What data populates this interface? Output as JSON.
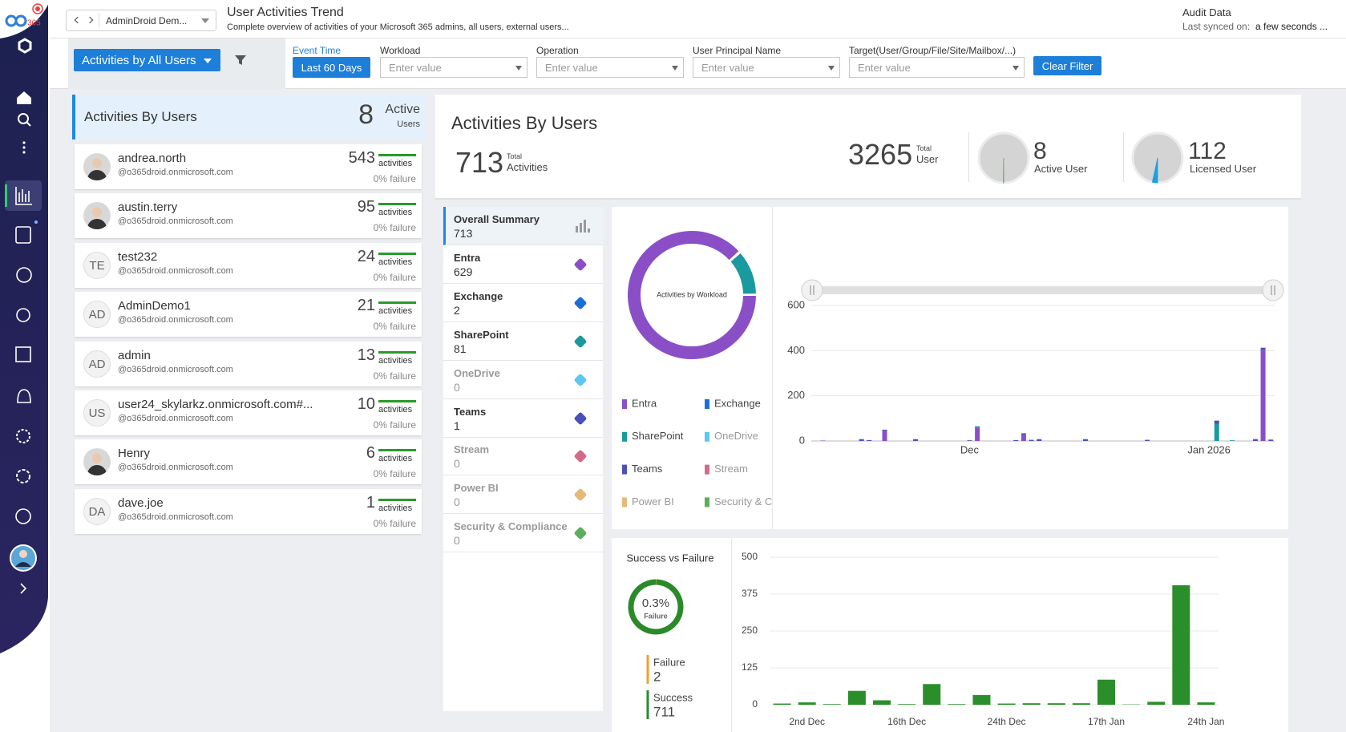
{
  "logo": {
    "text": "365"
  },
  "header": {
    "tenant": "AdminDroid Dem...",
    "title": "User Activities Trend",
    "subtitle": "Complete overview of activities of your Microsoft 365 admins, all users, external users...",
    "audit_title": "Audit Data",
    "synced_label": "Last synced on:",
    "synced_value": "a few seconds ..."
  },
  "filters": {
    "view": "Activities by All Users",
    "event_time_label": "Event Time",
    "event_time_value": "Last 60 Days",
    "fields": [
      {
        "label": "Workload",
        "placeholder": "Enter value"
      },
      {
        "label": "Operation",
        "placeholder": "Enter value"
      },
      {
        "label": "User Principal Name",
        "placeholder": "Enter value"
      },
      {
        "label": "Target(User/Group/File/Site/Mailbox/...)",
        "placeholder": "Enter value"
      }
    ],
    "clear": "Clear Filter"
  },
  "users_panel": {
    "title": "Activities By Users",
    "active_count": 8,
    "active_label": "Active",
    "active_sub": "Users",
    "users": [
      {
        "name": "andrea.north",
        "domain": "@o365droid.onmicrosoft.com",
        "count": 543,
        "count_label": "activities",
        "failure": "0% failure"
      },
      {
        "name": "austin.terry",
        "domain": "@o365droid.onmicrosoft.com",
        "count": 95,
        "count_label": "activities",
        "failure": "0% failure"
      },
      {
        "initials": "TE",
        "name": "test232",
        "domain": "@o365droid.onmicrosoft.com",
        "count": 24,
        "count_label": "activities",
        "failure": "0% failure"
      },
      {
        "initials": "AD",
        "name": "AdminDemo1",
        "domain": "@o365droid.onmicrosoft.com",
        "count": 21,
        "count_label": "activities",
        "failure": "0% failure"
      },
      {
        "initials": "AD",
        "name": "admin",
        "domain": "@o365droid.onmicrosoft.com",
        "count": 13,
        "count_label": "activities",
        "failure": "0% failure"
      },
      {
        "initials": "US",
        "name": "user24_skylarkz.onmicrosoft.com#...",
        "domain": "@o365droid.onmicrosoft.com",
        "count": 10,
        "count_label": "activities",
        "failure": "0% failure"
      },
      {
        "name": "Henry",
        "domain": "@o365droid.onmicrosoft.com",
        "count": 6,
        "count_label": "activities",
        "failure": "0% failure"
      },
      {
        "initials": "DA",
        "name": "dave.joe",
        "domain": "@o365droid.onmicrosoft.com",
        "count": 1,
        "count_label": "activities",
        "failure": "0% failure"
      }
    ]
  },
  "summary": {
    "title": "Activities By Users",
    "total_activities": 713,
    "total_activities_top": "Total",
    "total_activities_bottom": "Activities",
    "total_users": 3265,
    "total_users_top": "Total",
    "total_users_bottom": "User",
    "active_users": 8,
    "active_users_label": "Active User",
    "licensed_users": 112,
    "licensed_users_label": "Licensed User",
    "overall_label": "Overall Summary"
  },
  "chart_data": [
    {
      "type": "donut",
      "title": "Activities by Workload",
      "categories": [
        "Entra",
        "Exchange",
        "SharePoint",
        "OneDrive",
        "Teams",
        "Stream",
        "Power BI",
        "Security & Compliance"
      ],
      "values": [
        629,
        2,
        81,
        0,
        1,
        0,
        0,
        0
      ],
      "colors": [
        "#8a4fc7",
        "#1a6fd6",
        "#1a9a9e",
        "#5ac8f0",
        "#4b4fb8",
        "#d46a8a",
        "#e4b97a",
        "#5ab05a"
      ]
    },
    {
      "type": "bar",
      "stacked": true,
      "grid": true,
      "categories": [
        null,
        null,
        null,
        null,
        null,
        null,
        null,
        null,
        null,
        null,
        null,
        null,
        null,
        null,
        null,
        null,
        null,
        null,
        null,
        null,
        "Dec",
        null,
        null,
        null,
        null,
        null,
        null,
        null,
        null,
        null,
        null,
        null,
        null,
        null,
        null,
        null,
        null,
        null,
        null,
        null,
        null,
        null,
        null,
        null,
        null,
        null,
        null,
        null,
        null,
        null,
        null,
        "Jan 2026",
        null,
        null,
        null,
        null,
        null,
        null,
        null,
        null
      ],
      "series": [
        {
          "name": "Entra",
          "values": [
            0,
            2,
            0,
            0,
            0,
            0,
            0,
            0,
            0,
            45,
            0,
            0,
            0,
            0,
            0,
            0,
            0,
            0,
            0,
            0,
            0,
            60,
            0,
            0,
            0,
            0,
            0,
            28,
            0,
            0,
            0,
            0,
            0,
            0,
            0,
            0,
            0,
            0,
            0,
            0,
            0,
            0,
            0,
            0,
            0,
            0,
            0,
            0,
            0,
            0,
            0,
            0,
            0,
            0,
            0,
            0,
            0,
            0,
            405,
            0
          ]
        },
        {
          "name": "SharePoint",
          "values": [
            0,
            0,
            0,
            0,
            0,
            0,
            0,
            0,
            0,
            0,
            0,
            0,
            0,
            0,
            0,
            0,
            0,
            0,
            0,
            0,
            0,
            5,
            0,
            0,
            0,
            0,
            0,
            0,
            0,
            0,
            0,
            0,
            0,
            0,
            0,
            0,
            0,
            0,
            0,
            0,
            0,
            0,
            0,
            0,
            0,
            0,
            0,
            0,
            0,
            0,
            0,
            0,
            75,
            0,
            3,
            0,
            0,
            0,
            0,
            0
          ]
        },
        {
          "name": "Teams",
          "values": [
            0,
            0,
            0,
            0,
            0,
            0,
            8,
            4,
            0,
            5,
            0,
            0,
            0,
            8,
            0,
            0,
            0,
            0,
            0,
            0,
            3,
            0,
            0,
            0,
            0,
            0,
            4,
            6,
            5,
            8,
            0,
            0,
            0,
            0,
            0,
            8,
            0,
            0,
            0,
            0,
            0,
            0,
            0,
            5,
            0,
            0,
            0,
            0,
            0,
            0,
            0,
            0,
            15,
            0,
            0,
            0,
            0,
            8,
            8,
            6
          ]
        }
      ],
      "ylim": [
        0,
        600
      ],
      "yticks": [
        0,
        200,
        400,
        600
      ]
    },
    {
      "type": "donut",
      "title": "Success vs Failure",
      "center_value": "0.3%",
      "categories": [
        "Failure",
        "Success"
      ],
      "values": [
        2,
        711
      ],
      "colors": [
        "#f0a030",
        "#2a8a2a"
      ]
    },
    {
      "type": "bar",
      "grid": true,
      "color": "#2a8f2a",
      "categories": [
        null,
        "2nd Dec",
        null,
        null,
        null,
        "16th Dec",
        null,
        null,
        null,
        "24th Dec",
        null,
        null,
        null,
        "17th Jan",
        null,
        null,
        null,
        "24th Jan"
      ],
      "values": [
        4,
        8,
        2,
        47,
        15,
        2,
        70,
        2,
        33,
        4,
        5,
        5,
        5,
        85,
        1,
        10,
        405,
        8
      ],
      "ylim": [
        0,
        500
      ],
      "yticks": [
        0,
        125,
        250,
        375,
        500
      ]
    }
  ]
}
